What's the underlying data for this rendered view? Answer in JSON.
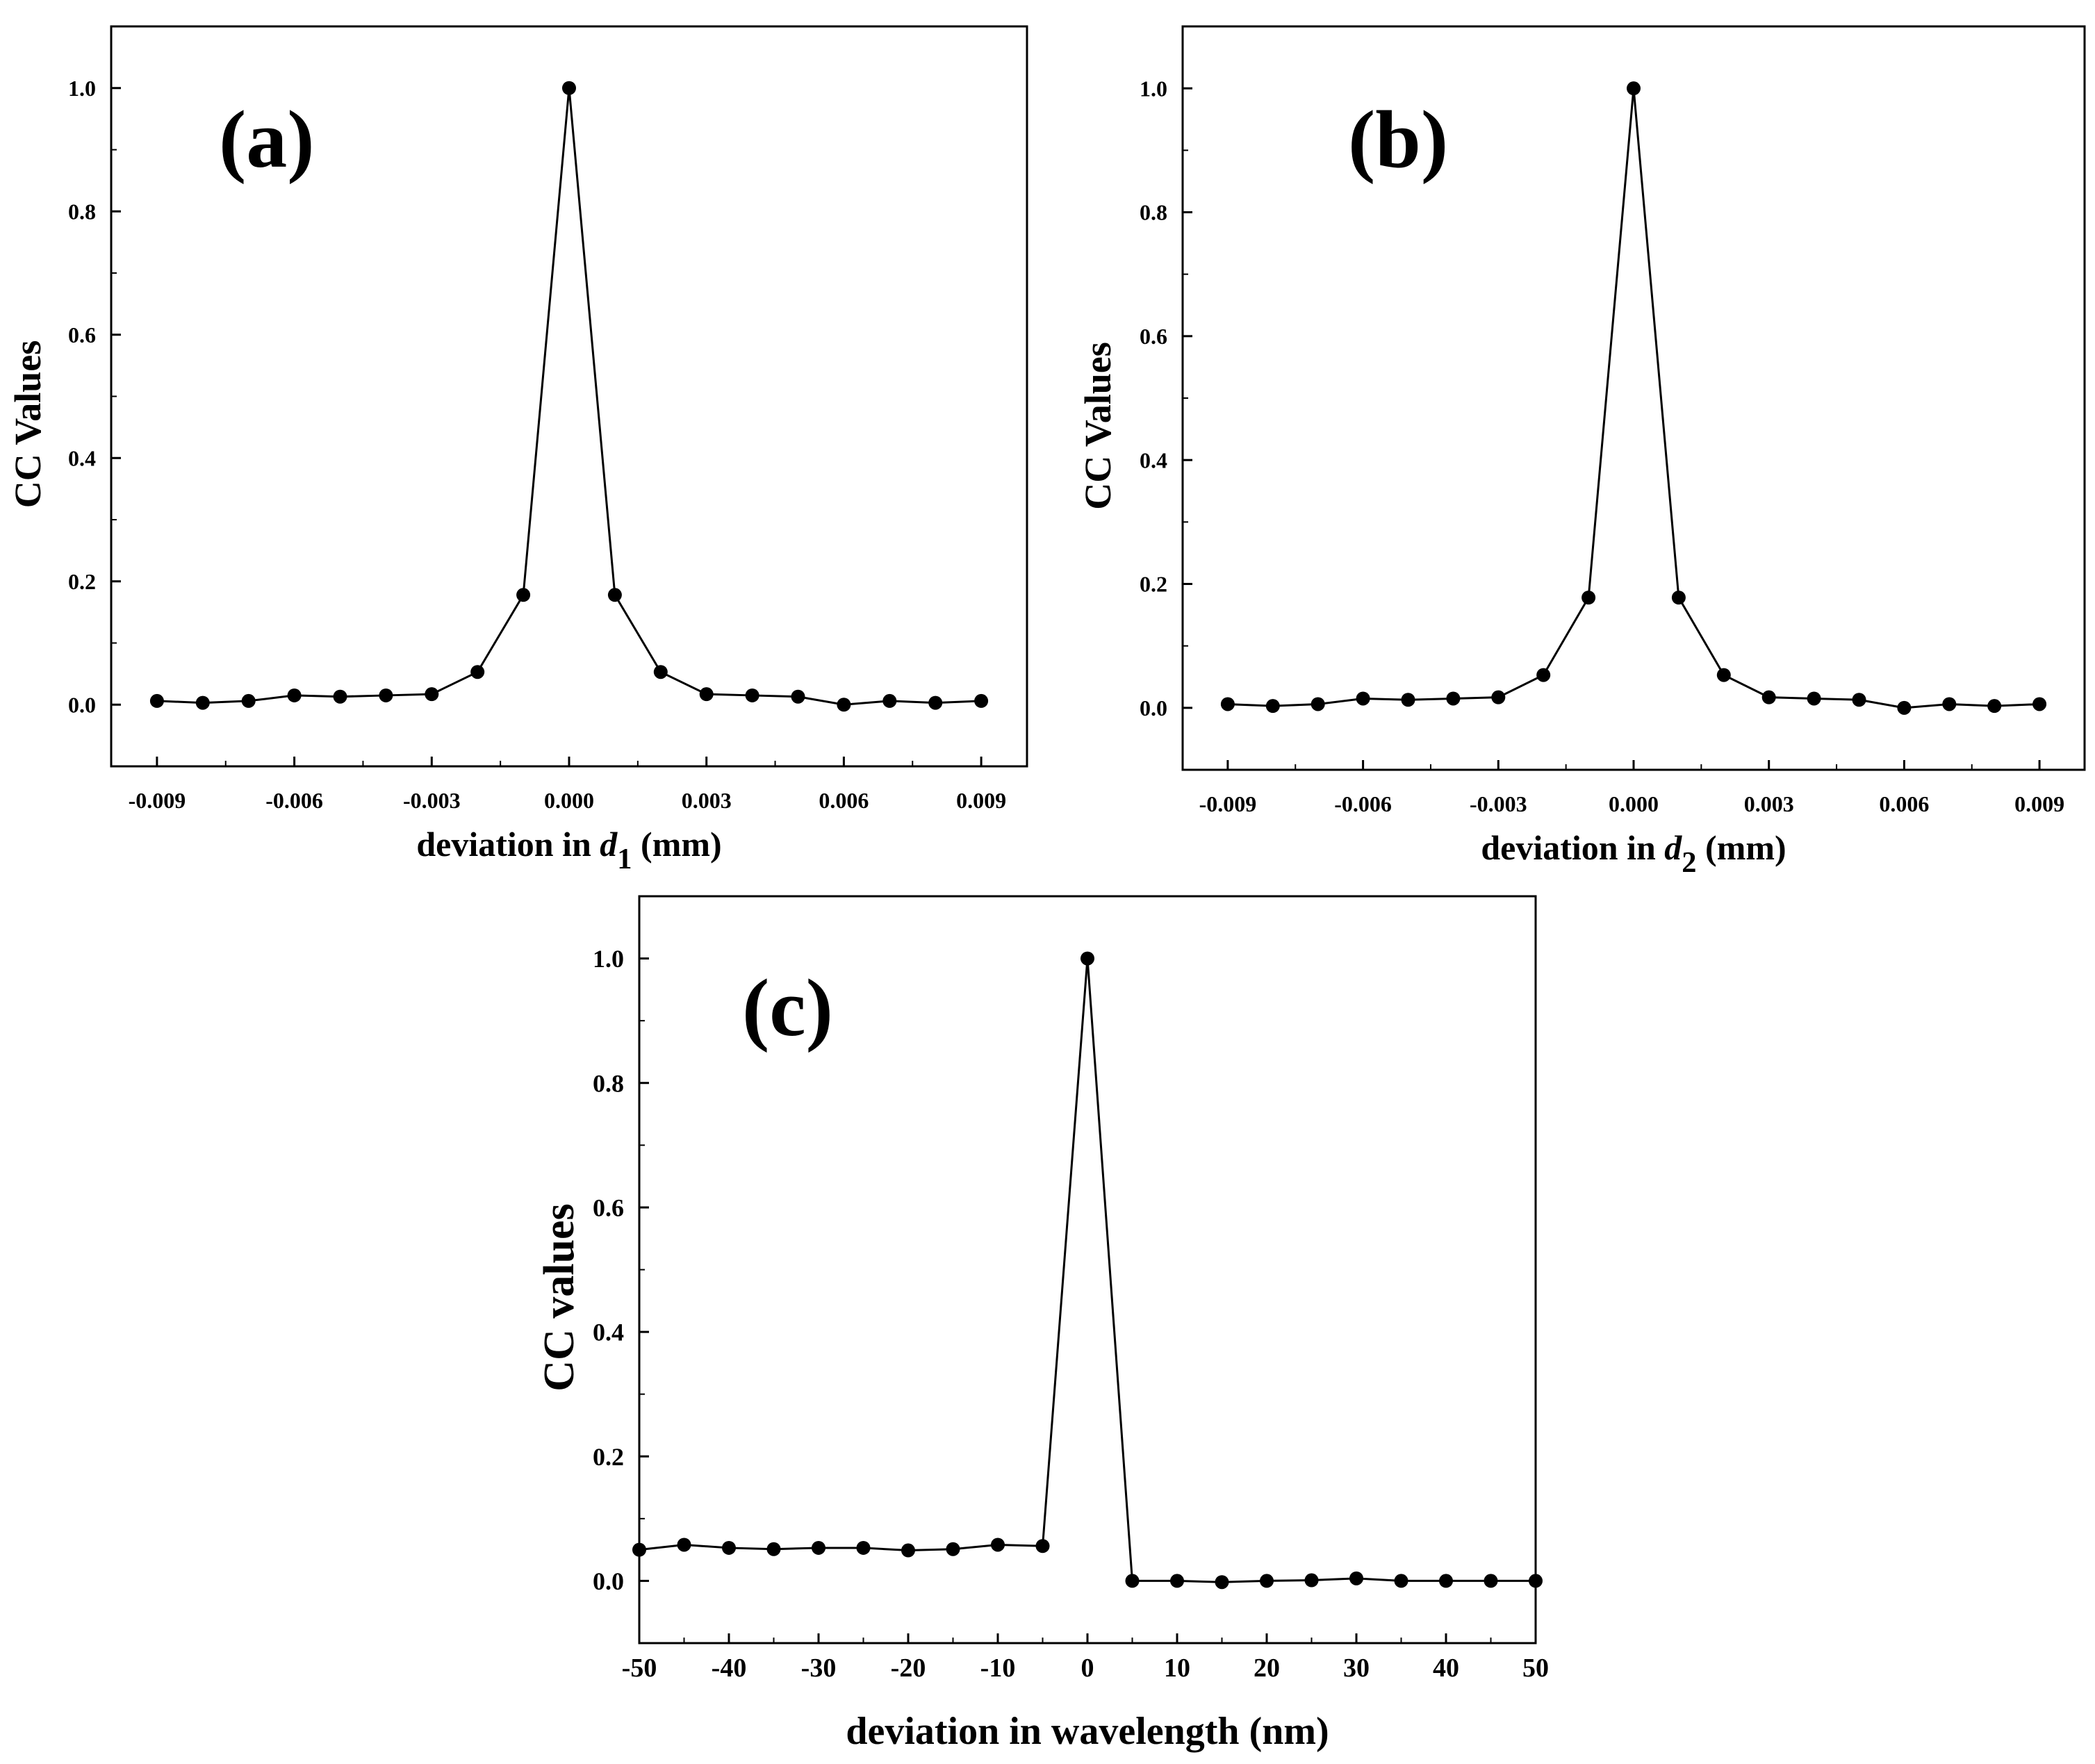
{
  "chart_data": [
    {
      "type": "line",
      "panel_label": "(a)",
      "title": "",
      "xlabel_prefix": "deviation in ",
      "xlabel_var": "d",
      "xlabel_sub": "1",
      "xlabel_suffix": " (mm)",
      "ylabel": "CC Values",
      "xlim": [
        -0.01,
        0.01
      ],
      "ylim": [
        -0.1,
        1.1
      ],
      "xticks": [
        -0.009,
        -0.006,
        -0.003,
        0.0,
        0.003,
        0.006,
        0.009
      ],
      "xtick_labels": [
        "-0.009",
        "-0.006",
        "-0.003",
        "0.000",
        "0.003",
        "0.006",
        "0.009"
      ],
      "yticks": [
        0.0,
        0.2,
        0.4,
        0.6,
        0.8,
        1.0
      ],
      "ytick_labels": [
        "0.0",
        "0.2",
        "0.4",
        "0.6",
        "0.8",
        "1.0"
      ],
      "grid": false,
      "series": [
        {
          "name": "CC",
          "x": [
            -0.009,
            -0.008,
            -0.007,
            -0.006,
            -0.005,
            -0.004,
            -0.003,
            -0.002,
            -0.001,
            0.0,
            0.001,
            0.002,
            0.003,
            0.004,
            0.005,
            0.006,
            0.007,
            0.008,
            0.009
          ],
          "y": [
            0.006,
            0.003,
            0.006,
            0.015,
            0.013,
            0.015,
            0.017,
            0.053,
            0.178,
            1.0,
            0.178,
            0.053,
            0.017,
            0.015,
            0.013,
            0.0,
            0.006,
            0.003,
            0.006
          ]
        }
      ]
    },
    {
      "type": "line",
      "panel_label": "(b)",
      "title": "",
      "xlabel_prefix": "deviation in ",
      "xlabel_var": "d",
      "xlabel_sub": "2",
      "xlabel_suffix": " (mm)",
      "ylabel": "CC Values",
      "xlim": [
        -0.01,
        0.01
      ],
      "ylim": [
        -0.1,
        1.1
      ],
      "xticks": [
        -0.009,
        -0.006,
        -0.003,
        0.0,
        0.003,
        0.006,
        0.009
      ],
      "xtick_labels": [
        "-0.009",
        "-0.006",
        "-0.003",
        "0.000",
        "0.003",
        "0.006",
        "0.009"
      ],
      "yticks": [
        0.0,
        0.2,
        0.4,
        0.6,
        0.8,
        1.0
      ],
      "ytick_labels": [
        "0.0",
        "0.2",
        "0.4",
        "0.6",
        "0.8",
        "1.0"
      ],
      "grid": false,
      "series": [
        {
          "name": "CC",
          "x": [
            -0.009,
            -0.008,
            -0.007,
            -0.006,
            -0.005,
            -0.004,
            -0.003,
            -0.002,
            -0.001,
            0.0,
            0.001,
            0.002,
            0.003,
            0.004,
            0.005,
            0.006,
            0.007,
            0.008,
            0.009
          ],
          "y": [
            0.006,
            0.003,
            0.006,
            0.015,
            0.013,
            0.015,
            0.017,
            0.053,
            0.178,
            1.0,
            0.178,
            0.053,
            0.017,
            0.015,
            0.013,
            0.0,
            0.006,
            0.003,
            0.006
          ]
        }
      ]
    },
    {
      "type": "line",
      "panel_label": "(c)",
      "title": "",
      "xlabel_prefix": "deviation in wavelength (nm)",
      "xlabel_var": "",
      "xlabel_sub": "",
      "xlabel_suffix": "",
      "ylabel": "CC values",
      "xlim": [
        -50,
        50
      ],
      "ylim": [
        -0.1,
        1.1
      ],
      "xticks": [
        -50,
        -40,
        -30,
        -20,
        -10,
        0,
        10,
        20,
        30,
        40,
        50
      ],
      "xtick_labels": [
        "-50",
        "-40",
        "-30",
        "-20",
        "-10",
        "0",
        "10",
        "20",
        "30",
        "40",
        "50"
      ],
      "yticks": [
        0.0,
        0.2,
        0.4,
        0.6,
        0.8,
        1.0
      ],
      "ytick_labels": [
        "0.0",
        "0.2",
        "0.4",
        "0.6",
        "0.8",
        "1.0"
      ],
      "grid": false,
      "series": [
        {
          "name": "CC",
          "x": [
            -50,
            -45,
            -40,
            -35,
            -30,
            -25,
            -20,
            -15,
            -10,
            -5,
            0,
            5,
            10,
            15,
            20,
            25,
            30,
            35,
            40,
            45,
            50
          ],
          "y": [
            0.05,
            0.058,
            0.053,
            0.051,
            0.053,
            0.053,
            0.049,
            0.051,
            0.058,
            0.056,
            1.0,
            0.0,
            0.0,
            -0.002,
            0.0,
            0.001,
            0.004,
            0.0,
            0.0,
            0.0,
            0.0
          ]
        }
      ]
    }
  ]
}
